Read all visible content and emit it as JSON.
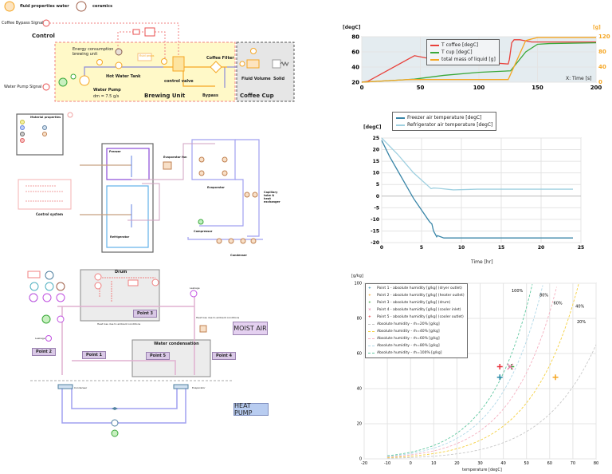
{
  "coffee_diagram": {
    "fluid_props_label": "fluid properties water",
    "ceramics_label": "ceramics",
    "bypass_signal_label": "Coffee Bypass Signal",
    "control_label": "Control",
    "energy_label_1": "Energy consumption",
    "energy_label_2": "brewing unit",
    "fluid_props_small": "fluid props",
    "hot_water_tank": "Hot Water Tank",
    "coffee_filter": "Coffee Filter",
    "control_valve": "control valve",
    "water_pump_signal": "Water Pump Signal",
    "water_pump": "Water Pump",
    "pump_flow": "dm = 7.5 g/s",
    "brewing_unit": "Brewing Unit",
    "bypass": "Bypass",
    "fluid_volume": "Fluid Volume",
    "solid": "Solid",
    "coffee_cup": "Coffee Cup"
  },
  "fridge_diagram": {
    "material_properties": "Material properties",
    "control_system": "Control system",
    "freezer": "Freezer",
    "refrigerator": "Refrigerator",
    "evaporator_fan": "Evaporator fan",
    "evaporator": "Evaporator",
    "compressor": "Compressor",
    "capillary": "Capillary tube & heat exchanger",
    "condenser": "Condenser"
  },
  "dryer_diagram": {
    "drum": "Drum",
    "heat_loss_1": "Heat loss due to ambient conditions",
    "heat_loss_2": "Heat loss due to ambient conditions",
    "leakage_1": "Leakage",
    "leakage_2": "Leakage",
    "water_condensation": "Water condensation",
    "point1": "Point 1",
    "point2": "Point 2",
    "point3": "Point 3",
    "point4": "Point 4",
    "point5": "Point 5",
    "moist_air": "MOIST AIR",
    "heat_pump": "HEAT PUMP",
    "condenser": "Condenser",
    "evaporator": "Evaporator"
  },
  "chart_data": [
    {
      "type": "line",
      "ylabel": "[degC]",
      "y2label": "[g]",
      "xlabel": "X: Time [s]",
      "xlim": [
        0,
        200
      ],
      "ylim": [
        20,
        80
      ],
      "y2lim": [
        0,
        120
      ],
      "xticks": [
        0,
        50,
        100,
        150,
        200
      ],
      "yticks": [
        20,
        40,
        60,
        80
      ],
      "y2ticks": [
        0,
        40,
        80,
        120
      ],
      "legend_placement": "top-center",
      "grid": true,
      "series": [
        {
          "name": "T coffee [degC]",
          "color": "#e8403a",
          "axis": "left",
          "x": [
            0,
            5,
            45,
            55,
            125,
            126,
            128,
            130,
            135,
            145,
            200
          ],
          "y": [
            20,
            21,
            55,
            52,
            44,
            50,
            72,
            76,
            76,
            73,
            73
          ]
        },
        {
          "name": "T cup [degC]",
          "color": "#3aa83a",
          "axis": "left",
          "x": [
            0,
            45,
            70,
            100,
            127,
            140,
            150,
            160,
            200
          ],
          "y": [
            20,
            24,
            29,
            33,
            35,
            60,
            70,
            71,
            72
          ]
        },
        {
          "name": "total mass of liquid [g]",
          "color": "#f5a623",
          "axis": "right",
          "x": [
            0,
            40,
            125,
            140,
            150,
            200
          ],
          "y": [
            0,
            7,
            7,
            110,
            118,
            118
          ]
        }
      ]
    },
    {
      "type": "line",
      "ylabel": "[degC]",
      "xlabel": "Time [hr]",
      "xlim": [
        0,
        25
      ],
      "ylim": [
        -20,
        25
      ],
      "xticks": [
        0,
        5,
        10,
        15,
        20,
        25
      ],
      "yticks": [
        25,
        20,
        15,
        10,
        5,
        0,
        -5,
        -10,
        -15,
        -20
      ],
      "legend_placement": "top",
      "grid": true,
      "series": [
        {
          "name": "Freezer air temperature [degC]",
          "color": "#3a86a8",
          "x": [
            0,
            1,
            2,
            3,
            4,
            5,
            6,
            6.3,
            6.5,
            6.9,
            7,
            7.8,
            24
          ],
          "y": [
            24,
            17,
            11,
            5,
            -1,
            -6,
            -11,
            -12,
            -15,
            -17.5,
            -17,
            -18,
            -18
          ]
        },
        {
          "name": "Refrigerator air temperature [degC]",
          "color": "#9fd0e0",
          "x": [
            0,
            2,
            4,
            6.2,
            6.5,
            7,
            9,
            12,
            24
          ],
          "y": [
            25,
            18,
            10,
            3.2,
            3.5,
            3.4,
            2.7,
            3,
            3
          ]
        }
      ]
    },
    {
      "type": "scatter",
      "ylabel": "[g/kg]",
      "xlabel": "temperature [degC]",
      "xlim": [
        -20,
        80
      ],
      "ylim": [
        0,
        100
      ],
      "xticks": [
        -20,
        -10,
        0,
        10,
        20,
        30,
        40,
        50,
        60,
        70,
        80
      ],
      "yticks": [
        0,
        20,
        40,
        60,
        80,
        100
      ],
      "legend_placement": "top-left",
      "grid": true,
      "points": [
        {
          "name": "Point 1 - absolute humidity [g/kg] (dryer outlet)",
          "color": "#2a8aa8",
          "marker": "+",
          "x": 38.5,
          "y": 46.5
        },
        {
          "name": "Point 2 - absolute humidity [g/kg] (heater outlet)",
          "color": "#f5a623",
          "marker": "+",
          "x": 62.5,
          "y": 46.5
        },
        {
          "name": "Point 3 - absolute humidity [g/kg] (drum)",
          "color": "#3aa83a",
          "marker": "+",
          "x": 43.5,
          "y": 52.5
        },
        {
          "name": "Point 4 - absolute humidity [g/kg] (cooler inlet)",
          "color": "#e87aa8",
          "marker": "x",
          "x": 43,
          "y": 52.5
        },
        {
          "name": "Point 5 - absolute humidity [g/kg] (cooler outlet)",
          "color": "#e8303a",
          "marker": "+",
          "x": 38.5,
          "y": 52.5
        }
      ],
      "curves": [
        {
          "name": "Absolute humidity - rh=20% [g/kg]",
          "rh": 0.2,
          "color": "#c8c8c8",
          "label": "20%"
        },
        {
          "name": "Absolute humidity - rh=40% [g/kg]",
          "rh": 0.4,
          "color": "#f5d040",
          "label": "40%"
        },
        {
          "name": "Absolute humidity - rh=60% [g/kg]",
          "rh": 0.6,
          "color": "#f5b0c0",
          "label": "60%"
        },
        {
          "name": "Absolute humidity - rh=80% [g/kg]",
          "rh": 0.8,
          "color": "#b0d8e8",
          "label": "80%"
        },
        {
          "name": "Absolute humidity - rh=100% [g/kg]",
          "rh": 1.0,
          "color": "#60c8a0",
          "label": "100%"
        }
      ]
    }
  ]
}
